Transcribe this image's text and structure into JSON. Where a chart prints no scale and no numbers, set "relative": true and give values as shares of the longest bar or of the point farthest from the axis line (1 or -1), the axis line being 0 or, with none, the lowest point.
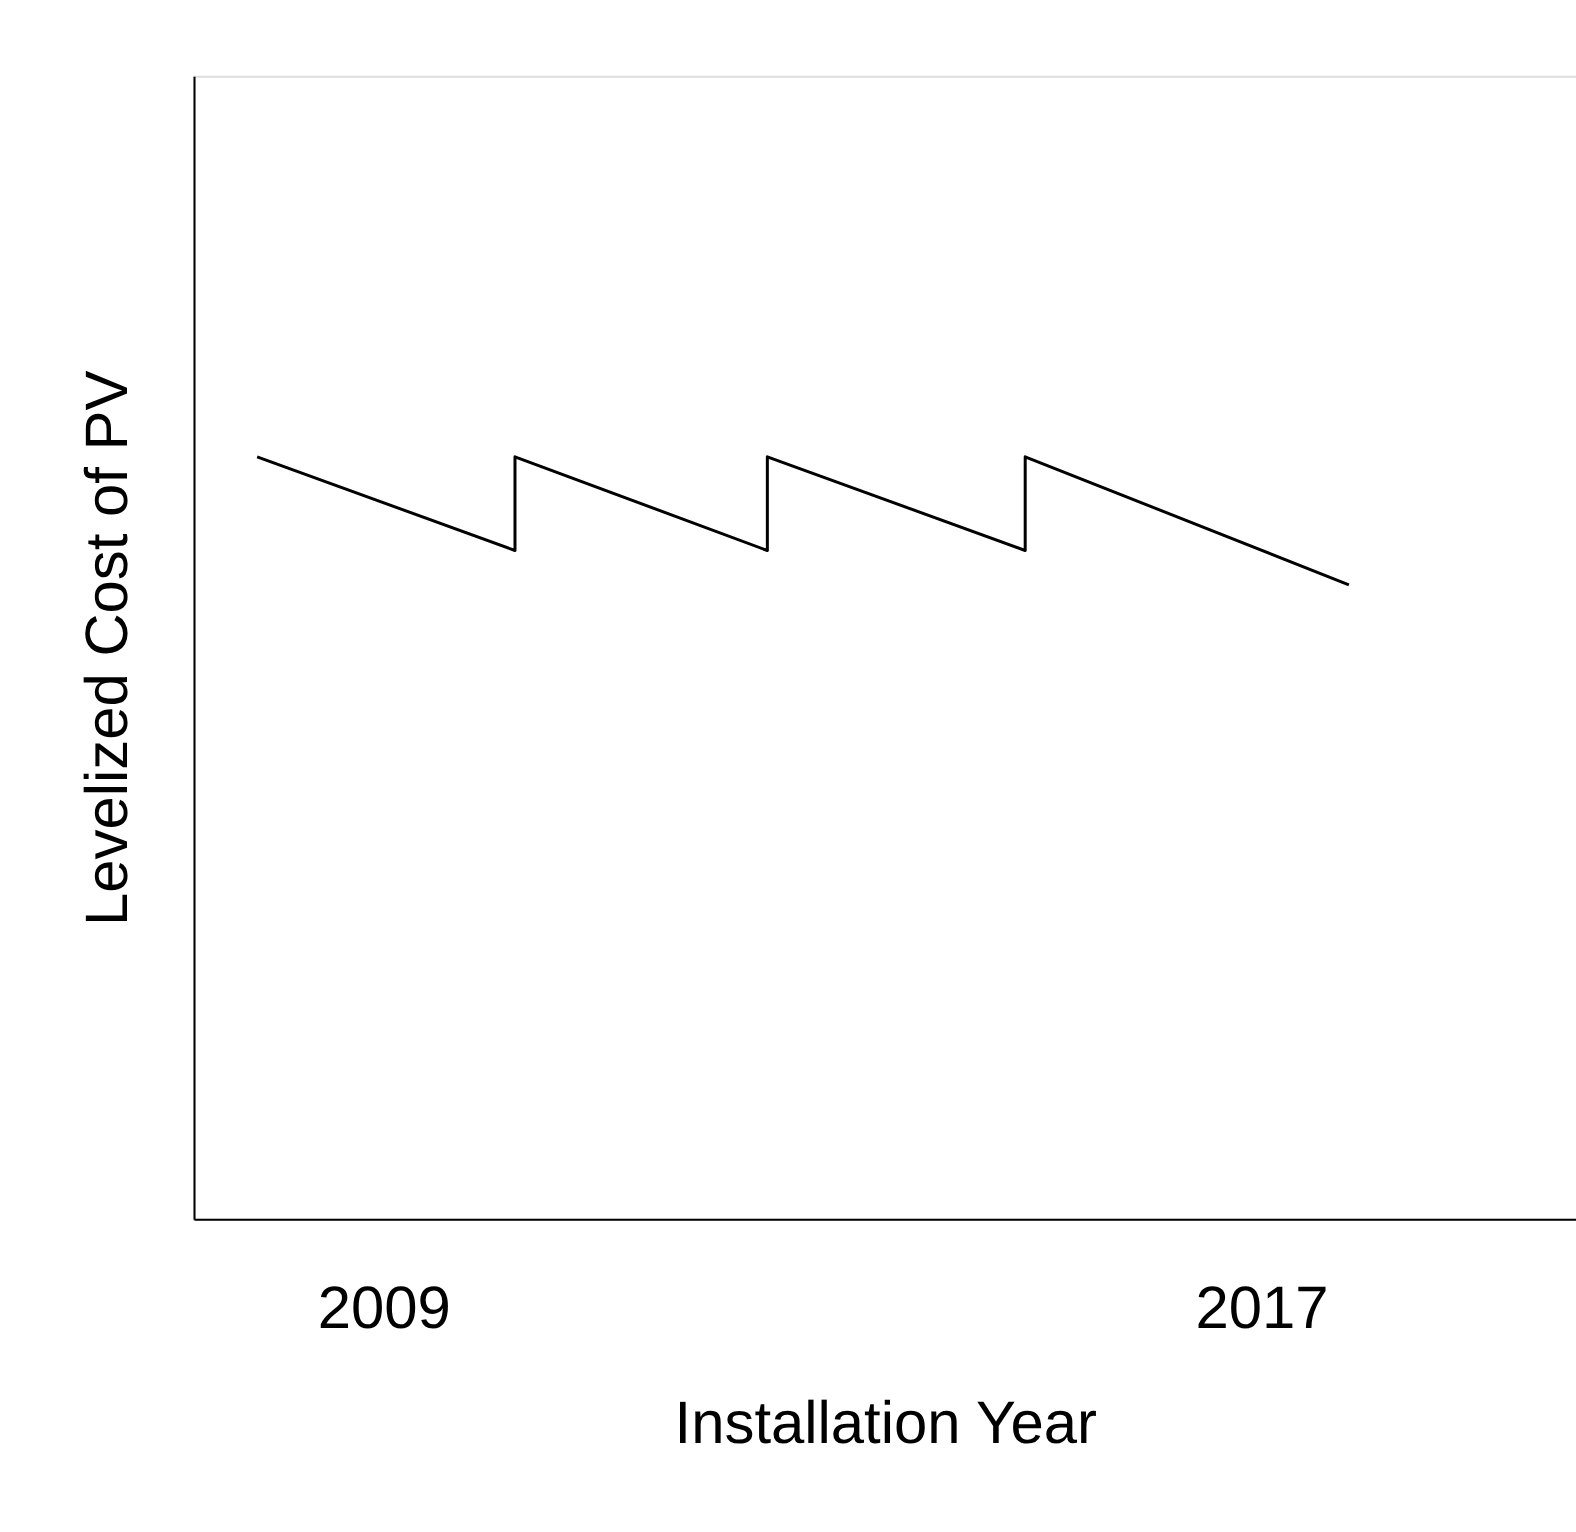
{
  "chart_data": {
    "type": "line",
    "relative": true,
    "xlabel": "Installation Year",
    "ylabel": "Levelized Cost of PV",
    "xlim": [
      2007.27,
      2019.87
    ],
    "xticks": [
      2009,
      2017
    ],
    "grid": false,
    "legend": false,
    "marker": "none",
    "line_style": "solid",
    "series": [
      {
        "color": "#000000",
        "x": [
          2007.85,
          2010.2,
          2010.2,
          2012.5,
          2012.5,
          2014.85,
          2014.85,
          2017.8
        ],
        "values": [
          1,
          0.877,
          1,
          0.877,
          1,
          0.877,
          1,
          0.832
        ]
      }
    ]
  }
}
